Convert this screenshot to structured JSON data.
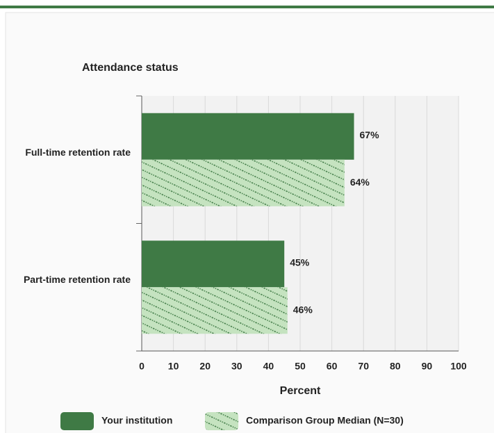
{
  "chart_data": {
    "type": "bar",
    "orientation": "horizontal",
    "title": "Attendance status",
    "x_label": "Percent",
    "categories": [
      "Full-time retention rate",
      "Part-time retention rate"
    ],
    "series": [
      {
        "name": "Your institution",
        "color": "#3f7a45",
        "pattern": "solid",
        "values": [
          67,
          45
        ],
        "value_labels": [
          "67%",
          "45%"
        ]
      },
      {
        "name": "Comparison Group Median (N=30)",
        "color": "#c5e3c0",
        "pattern": "hatched",
        "values": [
          64,
          46
        ],
        "value_labels": [
          "64%",
          "46%"
        ]
      }
    ],
    "xlim": [
      0,
      100
    ],
    "xticks": [
      0,
      10,
      20,
      30,
      40,
      50,
      60,
      70,
      80,
      90,
      100
    ],
    "grid": true,
    "legend": "bottom"
  }
}
